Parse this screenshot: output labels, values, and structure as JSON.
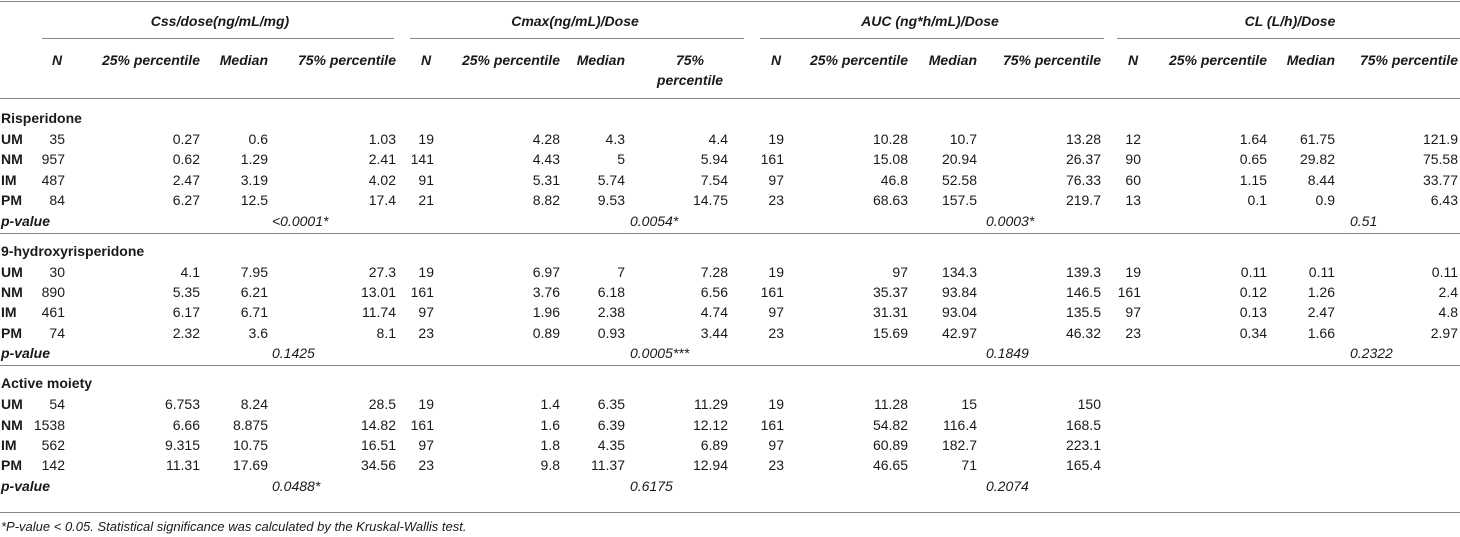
{
  "headers": {
    "groups": [
      "Css/dose(ng/mL/mg)",
      "Cmax(ng/mL)/Dose",
      "AUC (ng*h/mL)/Dose",
      "CL (L/h)/Dose"
    ],
    "sub": [
      "N",
      "25% percentile",
      "Median",
      "75% percentile"
    ],
    "cmax_75_line1": "75%",
    "cmax_75_line2": "percentile"
  },
  "sections": [
    {
      "title": "Risperidone",
      "rows": [
        {
          "label": "UM",
          "css": [
            "35",
            "0.27",
            "0.6",
            "1.03"
          ],
          "cmax": [
            "19",
            "4.28",
            "4.3",
            "4.4"
          ],
          "auc": [
            "19",
            "10.28",
            "10.7",
            "13.28"
          ],
          "cl": [
            "12",
            "1.64",
            "61.75",
            "121.9"
          ]
        },
        {
          "label": "NM",
          "css": [
            "957",
            "0.62",
            "1.29",
            "2.41"
          ],
          "cmax": [
            "141",
            "4.43",
            "5",
            "5.94"
          ],
          "auc": [
            "161",
            "15.08",
            "20.94",
            "26.37"
          ],
          "cl": [
            "90",
            "0.65",
            "29.82",
            "75.58"
          ]
        },
        {
          "label": "IM",
          "css": [
            "487",
            "2.47",
            "3.19",
            "4.02"
          ],
          "cmax": [
            "91",
            "5.31",
            "5.74",
            "7.54"
          ],
          "auc": [
            "97",
            "46.8",
            "52.58",
            "76.33"
          ],
          "cl": [
            "60",
            "1.15",
            "8.44",
            "33.77"
          ]
        },
        {
          "label": "PM",
          "css": [
            "84",
            "6.27",
            "12.5",
            "17.4"
          ],
          "cmax": [
            "21",
            "8.82",
            "9.53",
            "14.75"
          ],
          "auc": [
            "23",
            "68.63",
            "157.5",
            "219.7"
          ],
          "cl": [
            "13",
            "0.1",
            "0.9",
            "6.43"
          ]
        }
      ],
      "pvalue_label": "p-value",
      "pvalues": [
        "<0.0001*",
        "0.0054*",
        "0.0003*",
        "0.51"
      ]
    },
    {
      "title": "9-hydroxyrisperidone",
      "rows": [
        {
          "label": "UM",
          "css": [
            "30",
            "4.1",
            "7.95",
            "27.3"
          ],
          "cmax": [
            "19",
            "6.97",
            "7",
            "7.28"
          ],
          "auc": [
            "19",
            "97",
            "134.3",
            "139.3"
          ],
          "cl": [
            "19",
            "0.11",
            "0.11",
            "0.11"
          ]
        },
        {
          "label": "NM",
          "css": [
            "890",
            "5.35",
            "6.21",
            "13.01"
          ],
          "cmax": [
            "161",
            "3.76",
            "6.18",
            "6.56"
          ],
          "auc": [
            "161",
            "35.37",
            "93.84",
            "146.5"
          ],
          "cl": [
            "161",
            "0.12",
            "1.26",
            "2.4"
          ]
        },
        {
          "label": "IM",
          "css": [
            "461",
            "6.17",
            "6.71",
            "11.74"
          ],
          "cmax": [
            "97",
            "1.96",
            "2.38",
            "4.74"
          ],
          "auc": [
            "97",
            "31.31",
            "93.04",
            "135.5"
          ],
          "cl": [
            "97",
            "0.13",
            "2.47",
            "4.8"
          ]
        },
        {
          "label": "PM",
          "css": [
            "74",
            "2.32",
            "3.6",
            "8.1"
          ],
          "cmax": [
            "23",
            "0.89",
            "0.93",
            "3.44"
          ],
          "auc": [
            "23",
            "15.69",
            "42.97",
            "46.32"
          ],
          "cl": [
            "23",
            "0.34",
            "1.66",
            "2.97"
          ]
        }
      ],
      "pvalue_label": "p-value",
      "pvalues": [
        "0.1425",
        "0.0005***",
        "0.1849",
        "0.2322"
      ]
    },
    {
      "title": "Active moiety",
      "rows": [
        {
          "label": "UM",
          "css": [
            "54",
            "6.753",
            "8.24",
            "28.5"
          ],
          "cmax": [
            "19",
            "1.4",
            "6.35",
            "11.29"
          ],
          "auc": [
            "19",
            "11.28",
            "15",
            "150"
          ],
          "cl": [
            "",
            "",
            "",
            ""
          ]
        },
        {
          "label": "NM",
          "css": [
            "1538",
            "6.66",
            "8.875",
            "14.82"
          ],
          "cmax": [
            "161",
            "1.6",
            "6.39",
            "12.12"
          ],
          "auc": [
            "161",
            "54.82",
            "116.4",
            "168.5"
          ],
          "cl": [
            "",
            "",
            "",
            ""
          ]
        },
        {
          "label": "IM",
          "css": [
            "562",
            "9.315",
            "10.75",
            "16.51"
          ],
          "cmax": [
            "97",
            "1.8",
            "4.35",
            "6.89"
          ],
          "auc": [
            "97",
            "60.89",
            "182.7",
            "223.1"
          ],
          "cl": [
            "",
            "",
            "",
            ""
          ]
        },
        {
          "label": "PM",
          "css": [
            "142",
            "11.31",
            "17.69",
            "34.56"
          ],
          "cmax": [
            "23",
            "9.8",
            "11.37",
            "12.94"
          ],
          "auc": [
            "23",
            "46.65",
            "71",
            "165.4"
          ],
          "cl": [
            "",
            "",
            "",
            ""
          ]
        }
      ],
      "pvalue_label": "p-value",
      "pvalues": [
        "0.0488*",
        "0.6175",
        "0.2074",
        ""
      ]
    }
  ],
  "footnote": "*P-value < 0.05. Statistical significance was calculated by the Kruskal-Wallis test."
}
